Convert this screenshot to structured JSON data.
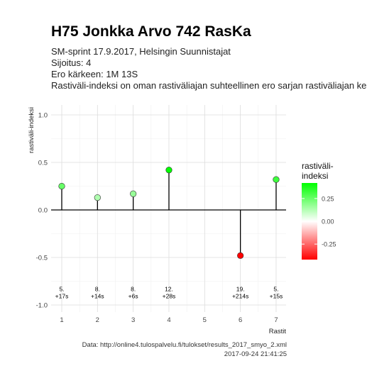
{
  "title": "H75 Jonkka Arvo 742 RasKa",
  "subtitle_lines": [
    "SM-sprint 17.9.2017, Helsingin Suunnistajat",
    "Sijoitus: 4",
    "Ero kärkeen: 1M 13S",
    "Rastiväli-indeksi on oman rastiväliajan suhteellinen ero sarjan rastiväliajan keskiarvoon"
  ],
  "caption_lines": [
    "Data: http://online4.tulospalvelu.fi/tulokset/results_2017_smyo_2.xml",
    "2017-09-24 21:41:25"
  ],
  "chart_data": {
    "type": "scatter",
    "style": "lollipop",
    "xlabel": "Rastit",
    "ylabel": "rastiväli-indeksi",
    "xlim": [
      0.7,
      7.3
    ],
    "ylim": [
      -1.05,
      1.1
    ],
    "x_ticks": [
      1,
      2,
      3,
      4,
      5,
      6,
      7
    ],
    "y_ticks": [
      -1.0,
      -0.5,
      0.0,
      0.5,
      1.0
    ],
    "y_tick_labels": [
      "-1.0",
      "-0.5",
      "0.0",
      "0.5",
      "1.0"
    ],
    "grid": true,
    "baseline": 0.0,
    "points": [
      {
        "x": 1,
        "y": 0.25,
        "rank_label": "5.",
        "diff_label": "+17s"
      },
      {
        "x": 2,
        "y": 0.13,
        "rank_label": "8.",
        "diff_label": "+14s"
      },
      {
        "x": 3,
        "y": 0.17,
        "rank_label": "8.",
        "diff_label": "+6s"
      },
      {
        "x": 4,
        "y": 0.42,
        "rank_label": "12.",
        "diff_label": "+28s"
      },
      {
        "x": 6,
        "y": -0.48,
        "rank_label": "19.",
        "diff_label": "+214s"
      },
      {
        "x": 7,
        "y": 0.32,
        "rank_label": "5.",
        "diff_label": "+15s"
      }
    ],
    "annotation_y": -0.9,
    "legend": {
      "title_lines": [
        "rastiväli-",
        "indeksi"
      ],
      "placement": "right",
      "range": [
        -0.42,
        0.42
      ],
      "ticks": [
        0.25,
        0.0,
        -0.25
      ],
      "tick_labels": [
        "0.25",
        "0.00",
        "-0.25"
      ],
      "colors": {
        "low": "#ff0000",
        "mid": "#ffffff",
        "high": "#00ff00"
      }
    }
  }
}
